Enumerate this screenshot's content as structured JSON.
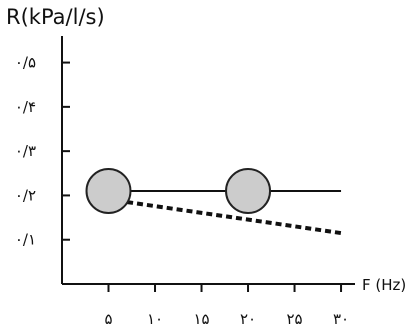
{
  "chart_data": {
    "type": "line",
    "ylabel": "R(kPa/l/s)",
    "xlabel": "F (Hz)",
    "x_ticks": [
      5,
      10,
      15,
      20,
      25,
      30
    ],
    "x_tick_labels": [
      "۵",
      "۱۰",
      "۱۵",
      "۲۰",
      "۲۵",
      "۳۰"
    ],
    "y_ticks": [
      0.1,
      0.2,
      0.3,
      0.4,
      0.5
    ],
    "y_tick_labels": [
      "۰/۱",
      "۰/۲",
      "۰/۳",
      "۰/۴",
      "۰/۵"
    ],
    "xlim": [
      0,
      31.5
    ],
    "ylim": [
      0,
      0.56
    ],
    "grid": false,
    "series": [
      {
        "style": "solid",
        "color": "#111111",
        "x": [
          5,
          30
        ],
        "y": [
          0.21,
          0.21
        ],
        "markers": [
          {
            "x": 5,
            "y": 0.21
          },
          {
            "x": 20,
            "y": 0.21
          }
        ]
      },
      {
        "style": "dashed",
        "color": "#111111",
        "x": [
          7,
          30
        ],
        "y": [
          0.185,
          0.115
        ]
      }
    ],
    "marker_fill": "#cccccc",
    "marker_stroke": "#222222"
  }
}
